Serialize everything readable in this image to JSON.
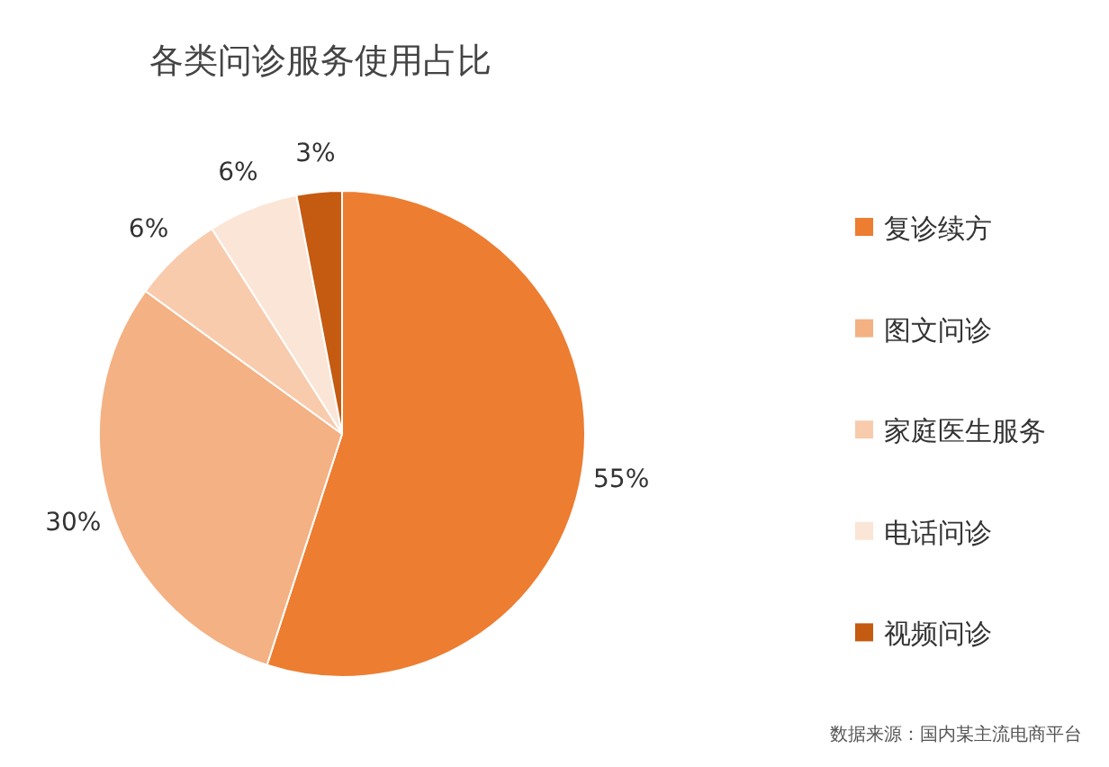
{
  "chart_data": {
    "type": "pie",
    "title": "各类问诊服务使用占比",
    "categories": [
      "复诊续方",
      "图文问诊",
      "家庭医生服务",
      "电话问诊",
      "视频问诊"
    ],
    "values": [
      55,
      30,
      6,
      6,
      3
    ],
    "colors": [
      "#ed7d31",
      "#f4b183",
      "#f8cbad",
      "#fbe5d6",
      "#c55a11"
    ],
    "value_labels": [
      "55%",
      "30%",
      "6%",
      "6%",
      "3%"
    ],
    "legend": "right",
    "annotations": [
      "数据来源：国内某主流电商平台"
    ]
  }
}
